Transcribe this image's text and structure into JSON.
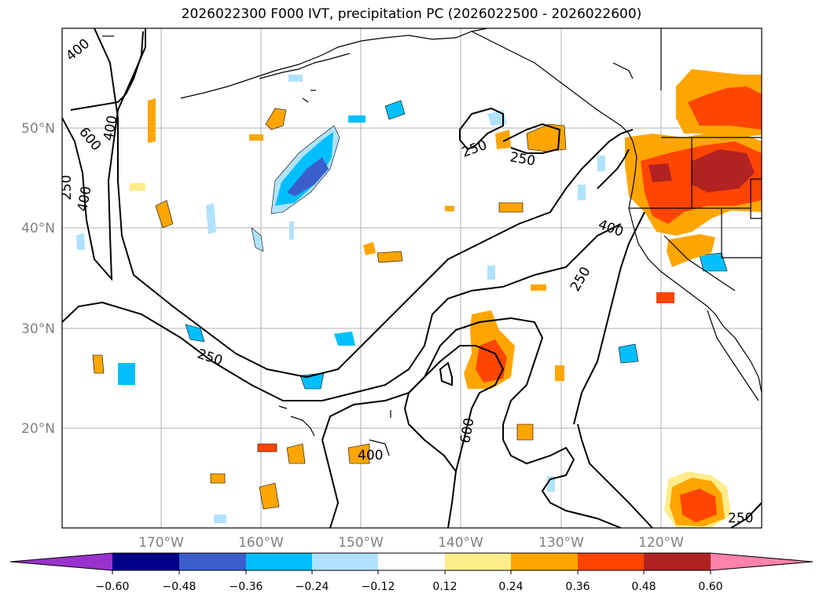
{
  "title": "2026022300 F000 IVT, precipitation PC (2026022500 - 2026022600)",
  "lat_labels": [
    "50°N",
    "40°N",
    "30°N",
    "20°N"
  ],
  "lon_labels": [
    "170°W",
    "160°W",
    "150°W",
    "140°W",
    "130°W",
    "120°W"
  ],
  "contour_labels": [
    "400",
    "600",
    "400",
    "250",
    "400",
    "250",
    "250",
    "400",
    "250",
    "250",
    "600",
    "400",
    "250"
  ],
  "colorbar": {
    "ticks": [
      "−0.60",
      "−0.48",
      "−0.36",
      "−0.24",
      "−0.12",
      "0.12",
      "0.24",
      "0.36",
      "0.48",
      "0.60"
    ],
    "colors": [
      "#9a32cd",
      "#00008b",
      "#3a5fcd",
      "#00bfff",
      "#b0e2ff",
      "#ffffff",
      "#ffec8b",
      "#ffa500",
      "#ff4500",
      "#b22222",
      "#ff82ab"
    ]
  }
}
